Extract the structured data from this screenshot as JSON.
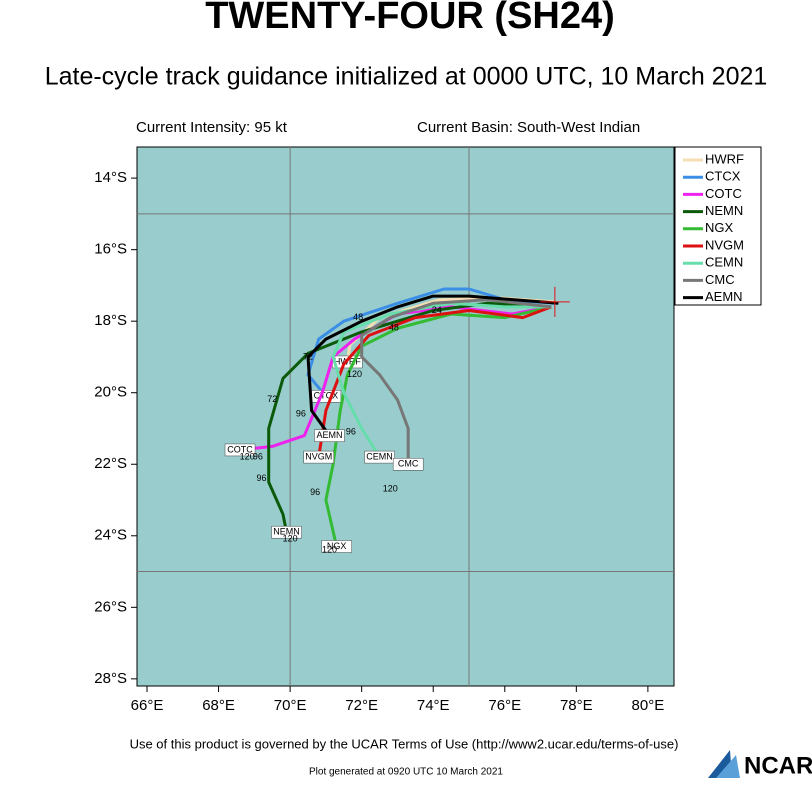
{
  "chart_data": {
    "type": "line",
    "title": "TWENTY-FOUR (SH24)",
    "subtitle": "Late-cycle track guidance initialized at 0000 UTC, 10 March 2021",
    "intensity": "Current Intensity: 95 kt",
    "basin": "Current Basin: South-West Indian",
    "background": "#99cccc",
    "xlim": [
      65.72,
      80.73
    ],
    "ylim": [
      -28.2,
      -13.13
    ],
    "xticks": [
      {
        "value": 66,
        "label": "66°E"
      },
      {
        "value": 68,
        "label": "68°E"
      },
      {
        "value": 70,
        "label": "70°E"
      },
      {
        "value": 72,
        "label": "72°E"
      },
      {
        "value": 74,
        "label": "74°E"
      },
      {
        "value": 76,
        "label": "76°E"
      },
      {
        "value": 78,
        "label": "78°E"
      },
      {
        "value": 80,
        "label": "80°E"
      }
    ],
    "yticks": [
      {
        "value": -14,
        "label": "14°S"
      },
      {
        "value": -16,
        "label": "16°S"
      },
      {
        "value": -18,
        "label": "18°S"
      },
      {
        "value": -20,
        "label": "20°S"
      },
      {
        "value": -22,
        "label": "22°S"
      },
      {
        "value": -24,
        "label": "24°S"
      },
      {
        "value": -26,
        "label": "26°S"
      },
      {
        "value": -28,
        "label": "28°S"
      }
    ],
    "xgrid": [
      70,
      75
    ],
    "ygrid": [
      -15,
      -25
    ],
    "series": [
      {
        "name": "HWRF",
        "color": "#f5deb3",
        "x": [
          77.4,
          75.86,
          74.18,
          72.5,
          71.67,
          71.6
        ],
        "values": [
          -17.46,
          -17.35,
          -17.4,
          -17.9,
          -18.66,
          -19.14
        ]
      },
      {
        "name": "CTCX",
        "color": "#3a8ee6",
        "x": [
          77.4,
          76.0,
          75.0,
          74.3,
          73.0,
          71.5,
          70.8,
          70.5,
          71.0
        ],
        "values": [
          -17.5,
          -17.4,
          -17.1,
          -17.1,
          -17.5,
          -18.0,
          -18.5,
          -19.5,
          -20.1
        ]
      },
      {
        "name": "COTC",
        "color": "#ee22ee",
        "x": [
          77.3,
          76.2,
          74.5,
          73.0,
          71.8,
          71.2,
          70.9,
          70.4,
          69.5,
          68.6
        ],
        "values": [
          -17.6,
          -17.8,
          -17.6,
          -17.8,
          -18.5,
          -19.0,
          -20.0,
          -21.2,
          -21.5,
          -21.6
        ]
      },
      {
        "name": "NEMN",
        "color": "#0a5a0a",
        "x": [
          77.3,
          75.5,
          74.0,
          72.0,
          70.5,
          69.8,
          69.4,
          69.4,
          69.8,
          69.9
        ],
        "values": [
          -17.6,
          -17.5,
          -17.7,
          -18.3,
          -18.9,
          -19.6,
          -21.0,
          -22.5,
          -23.4,
          -23.9
        ]
      },
      {
        "name": "NGX",
        "color": "#33bb33",
        "x": [
          77.3,
          76.0,
          74.5,
          73.0,
          72.0,
          71.6,
          71.4,
          71.2,
          71.0,
          71.3
        ],
        "values": [
          -17.6,
          -17.9,
          -17.8,
          -18.2,
          -18.7,
          -19.5,
          -20.5,
          -22.0,
          -23.0,
          -24.3
        ]
      },
      {
        "name": "NVGM",
        "color": "#dd1111",
        "x": [
          77.3,
          76.5,
          75.0,
          73.5,
          72.2,
          71.5,
          71.0,
          70.8
        ],
        "values": [
          -17.6,
          -17.9,
          -17.7,
          -17.9,
          -18.4,
          -19.2,
          -20.5,
          -21.8
        ]
      },
      {
        "name": "CEMN",
        "color": "#66ddaa",
        "x": [
          77.3,
          76.0,
          74.5,
          72.8,
          71.5,
          71.2,
          71.5,
          72.0,
          72.5
        ],
        "values": [
          -17.6,
          -17.6,
          -17.5,
          -17.8,
          -18.3,
          -19.0,
          -20.0,
          -21.0,
          -21.8
        ]
      },
      {
        "name": "CMC",
        "color": "#777777",
        "x": [
          77.3,
          75.5,
          74.0,
          72.8,
          72.0,
          72.0,
          72.5,
          73.0,
          73.3,
          73.3
        ],
        "values": [
          -17.6,
          -17.4,
          -17.5,
          -17.9,
          -18.4,
          -19.0,
          -19.5,
          -20.2,
          -21.0,
          -22.0
        ]
      },
      {
        "name": "AEMN",
        "color": "#000000",
        "x": [
          77.5,
          75.0,
          74.0,
          73.0,
          72.0,
          71.0,
          70.5,
          70.6,
          71.1
        ],
        "values": [
          -17.5,
          -17.3,
          -17.3,
          -17.6,
          -18.0,
          -18.5,
          -19.0,
          -20.5,
          -21.2
        ]
      }
    ],
    "hour_labels": [
      {
        "text": "24",
        "x": 74.1,
        "y": -17.7
      },
      {
        "text": "48",
        "x": 71.9,
        "y": -17.9
      },
      {
        "text": "48",
        "x": 72.9,
        "y": -18.2
      },
      {
        "text": "72",
        "x": 70.5,
        "y": -19.0
      },
      {
        "text": "72",
        "x": 69.5,
        "y": -20.2
      },
      {
        "text": "96",
        "x": 70.3,
        "y": -20.6
      },
      {
        "text": "96",
        "x": 71.7,
        "y": -21.1
      },
      {
        "text": "96",
        "x": 69.1,
        "y": -21.8
      },
      {
        "text": "96",
        "x": 69.2,
        "y": -22.4
      },
      {
        "text": "96",
        "x": 70.7,
        "y": -22.8
      },
      {
        "text": "120",
        "x": 68.8,
        "y": -21.8
      },
      {
        "text": "120",
        "x": 70.0,
        "y": -24.1
      },
      {
        "text": "120",
        "x": 71.1,
        "y": -24.4
      },
      {
        "text": "120",
        "x": 72.8,
        "y": -22.7
      },
      {
        "text": "120",
        "x": 71.8,
        "y": -19.5
      }
    ],
    "footer": "Use of this product is governed by the UCAR Terms of Use (http://www2.ucar.edu/terms-of-use)",
    "generated": "Plot generated at 0920 UTC   10 March 2021",
    "logo": "NCAR"
  }
}
